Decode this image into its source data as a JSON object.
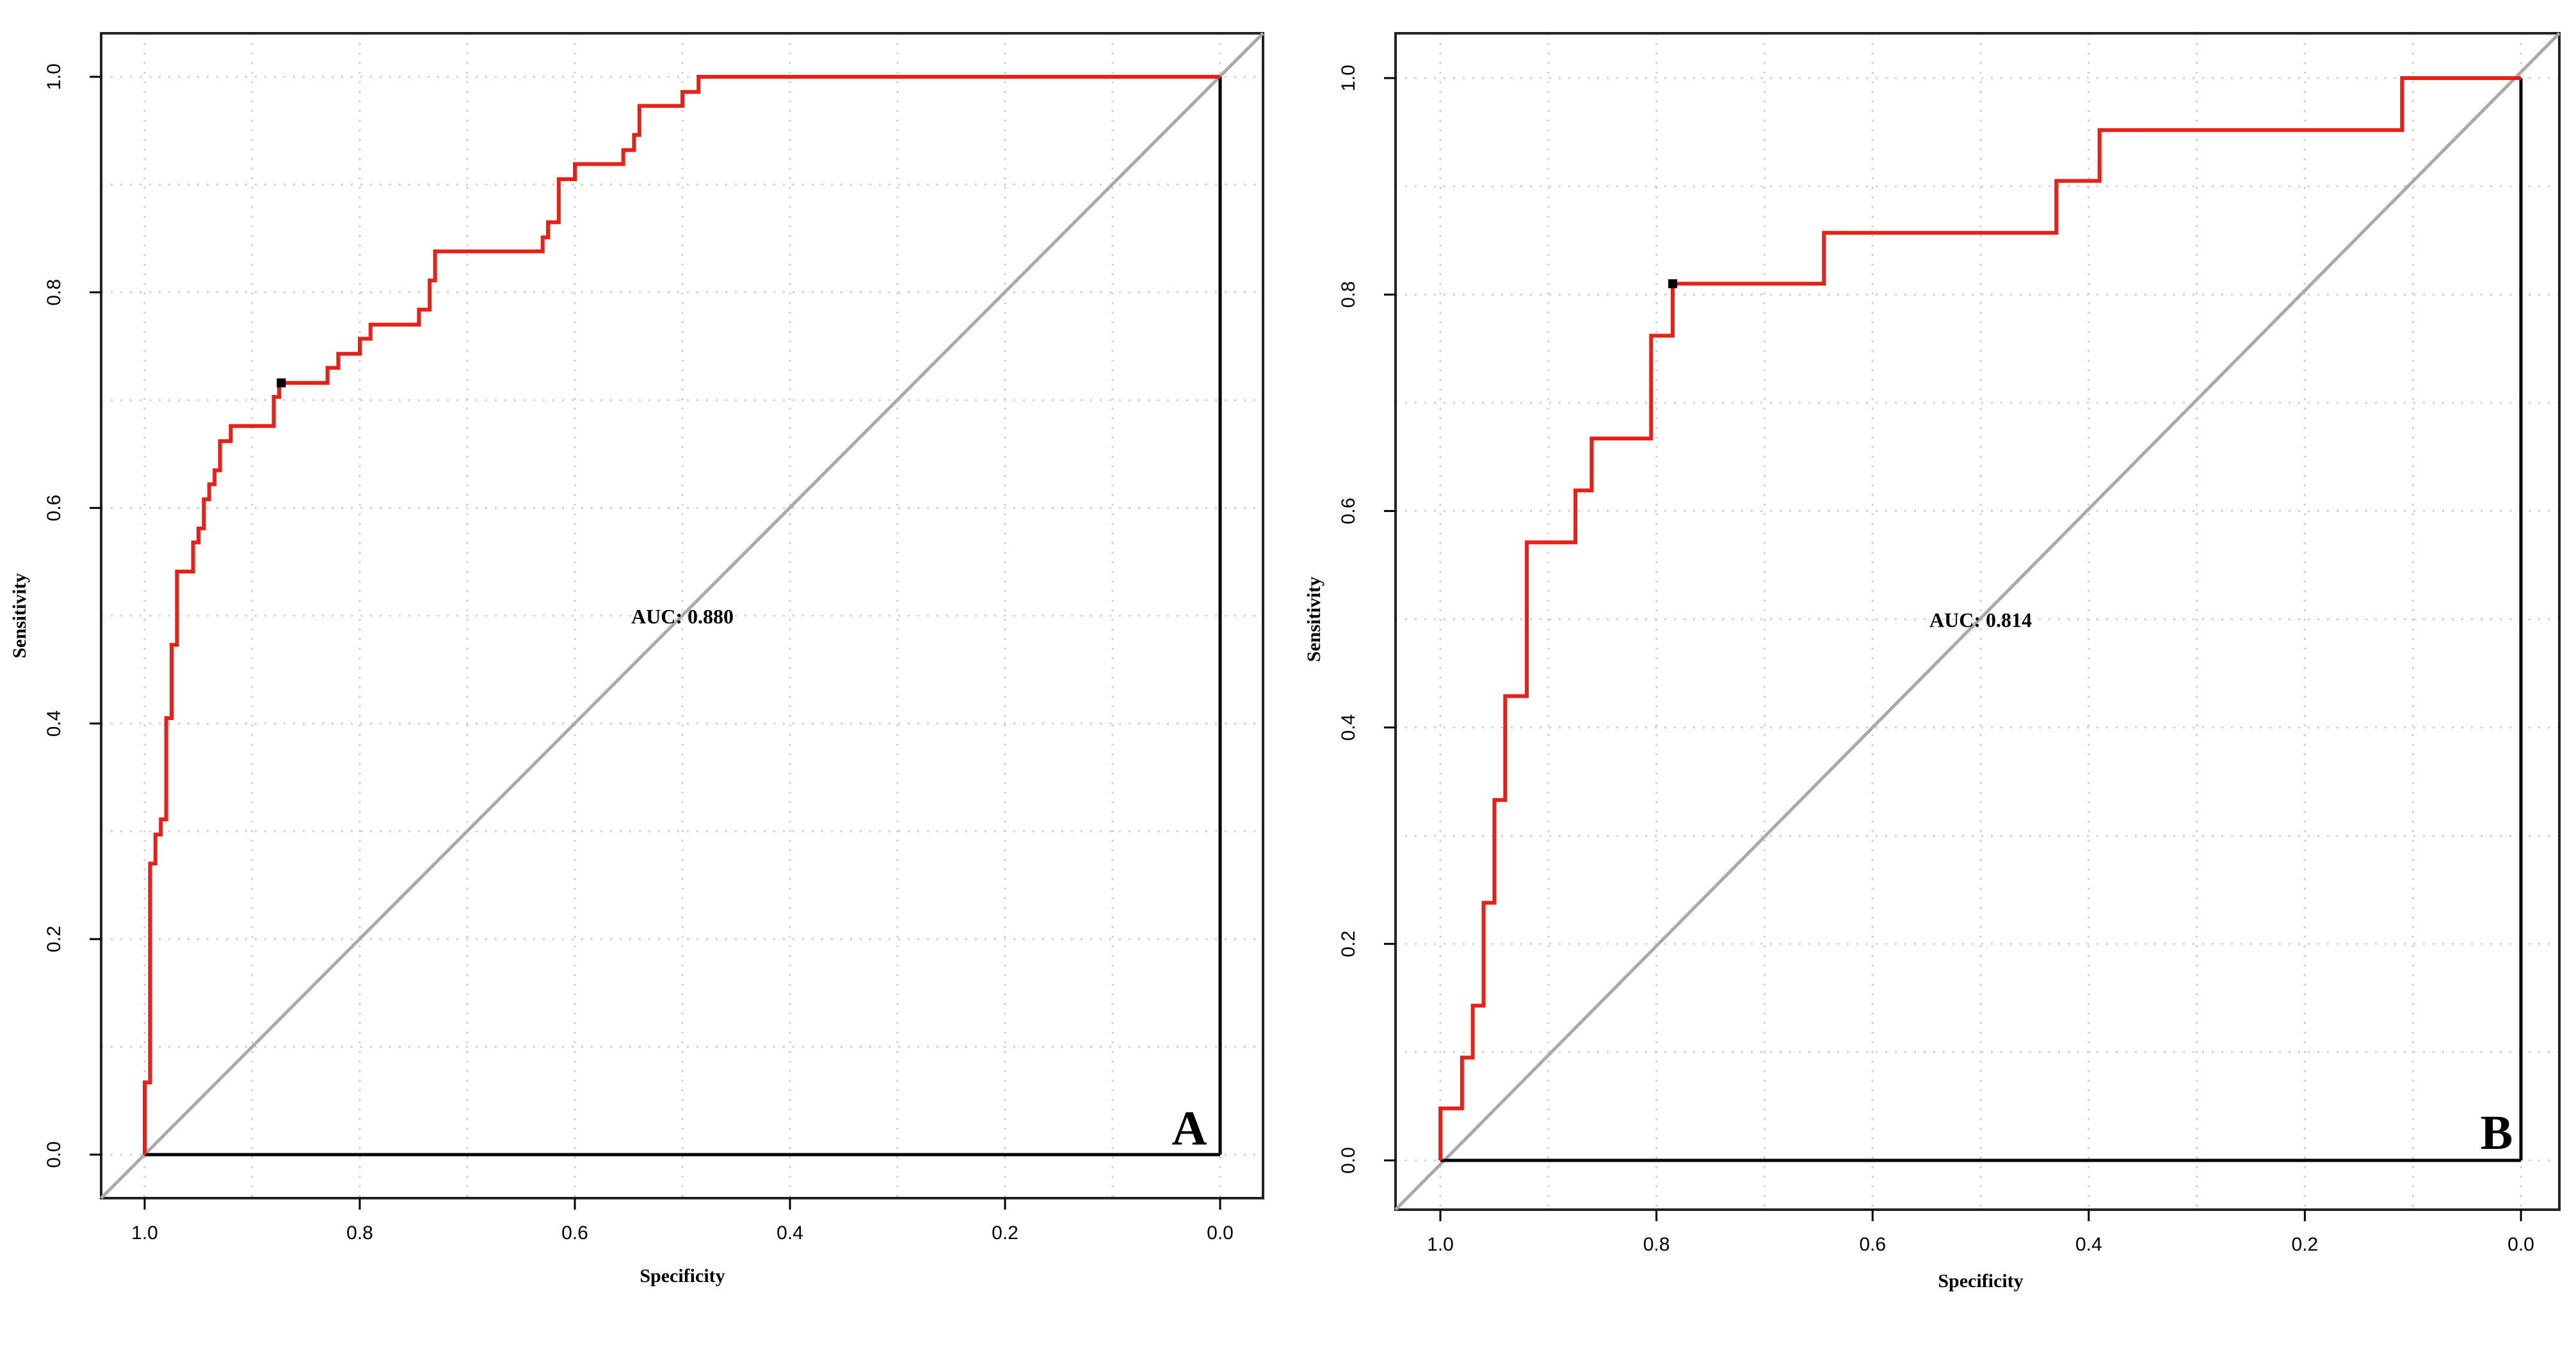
{
  "chart_data": [
    {
      "type": "line",
      "panel_letter": "A",
      "xlabel": "Specificity",
      "ylabel": "Sensitivity",
      "xlim": [
        1.0,
        0.0
      ],
      "ylim": [
        0.0,
        1.0
      ],
      "x_ticks": [
        "1.0",
        "0.8",
        "0.6",
        "0.4",
        "0.2",
        "0.0"
      ],
      "y_ticks": [
        "0.0",
        "0.2",
        "0.4",
        "0.6",
        "0.8",
        "1.0"
      ],
      "grid": true,
      "annotation": "AUC: 0.880",
      "annotation_pos": {
        "specificity": 0.5,
        "sensitivity": 0.5
      },
      "diagonal": "reference line",
      "optimal_point": {
        "specificity": 0.873,
        "sensitivity": 0.716
      },
      "series": [
        {
          "name": "ROC",
          "color": "#e8201a",
          "specificity": [
            1.0,
            1.0,
            0.995,
            0.995,
            0.99,
            0.99,
            0.985,
            0.985,
            0.98,
            0.98,
            0.975,
            0.975,
            0.97,
            0.97,
            0.955,
            0.955,
            0.95,
            0.95,
            0.945,
            0.945,
            0.94,
            0.94,
            0.935,
            0.935,
            0.93,
            0.93,
            0.92,
            0.92,
            0.9,
            0.9,
            0.88,
            0.88,
            0.875,
            0.875,
            0.873,
            0.873,
            0.83,
            0.83,
            0.82,
            0.82,
            0.8,
            0.8,
            0.79,
            0.79,
            0.78,
            0.78,
            0.745,
            0.745,
            0.735,
            0.735,
            0.73,
            0.73,
            0.63,
            0.63,
            0.625,
            0.625,
            0.615,
            0.615,
            0.6,
            0.6,
            0.57,
            0.57,
            0.555,
            0.555,
            0.545,
            0.545,
            0.54,
            0.54,
            0.5,
            0.5,
            0.485,
            0.485,
            0.0
          ],
          "sensitivity": [
            0.0,
            0.067,
            0.067,
            0.27,
            0.27,
            0.297,
            0.297,
            0.311,
            0.311,
            0.405,
            0.405,
            0.473,
            0.473,
            0.541,
            0.541,
            0.568,
            0.568,
            0.581,
            0.581,
            0.608,
            0.608,
            0.622,
            0.622,
            0.635,
            0.635,
            0.662,
            0.662,
            0.676,
            0.676,
            0.676,
            0.676,
            0.703,
            0.703,
            0.716,
            0.716,
            0.716,
            0.716,
            0.73,
            0.73,
            0.743,
            0.743,
            0.757,
            0.757,
            0.77,
            0.77,
            0.77,
            0.77,
            0.784,
            0.784,
            0.811,
            0.811,
            0.838,
            0.838,
            0.851,
            0.851,
            0.865,
            0.865,
            0.905,
            0.905,
            0.919,
            0.919,
            0.919,
            0.919,
            0.932,
            0.932,
            0.946,
            0.946,
            0.973,
            0.973,
            0.986,
            0.986,
            1.0,
            1.0
          ]
        }
      ]
    },
    {
      "type": "line",
      "panel_letter": "B",
      "xlabel": "Specificity",
      "ylabel": "Sensitivity",
      "xlim": [
        1.0,
        0.0
      ],
      "ylim": [
        0.0,
        1.0
      ],
      "x_ticks": [
        "1.0",
        "0.8",
        "0.6",
        "0.4",
        "0.2",
        "0.0"
      ],
      "y_ticks": [
        "0.0",
        "0.2",
        "0.4",
        "0.6",
        "0.8",
        "1.0"
      ],
      "grid": true,
      "annotation": "AUC: 0.814",
      "annotation_pos": {
        "specificity": 0.5,
        "sensitivity": 0.5
      },
      "diagonal": "reference line",
      "optimal_point": {
        "specificity": 0.785,
        "sensitivity": 0.81
      },
      "series": [
        {
          "name": "ROC",
          "color": "#e8201a",
          "specificity": [
            1.0,
            1.0,
            0.98,
            0.98,
            0.97,
            0.97,
            0.96,
            0.96,
            0.95,
            0.95,
            0.94,
            0.94,
            0.93,
            0.93,
            0.92,
            0.92,
            0.875,
            0.875,
            0.86,
            0.86,
            0.805,
            0.805,
            0.785,
            0.785,
            0.645,
            0.645,
            0.43,
            0.43,
            0.39,
            0.39,
            0.11,
            0.11,
            0.0
          ],
          "sensitivity": [
            0.0,
            0.048,
            0.048,
            0.095,
            0.095,
            0.143,
            0.143,
            0.238,
            0.238,
            0.333,
            0.333,
            0.429,
            0.429,
            0.429,
            0.429,
            0.571,
            0.571,
            0.619,
            0.619,
            0.667,
            0.667,
            0.762,
            0.762,
            0.81,
            0.81,
            0.857,
            0.857,
            0.905,
            0.905,
            0.952,
            0.952,
            1.0,
            1.0
          ]
        }
      ]
    }
  ]
}
